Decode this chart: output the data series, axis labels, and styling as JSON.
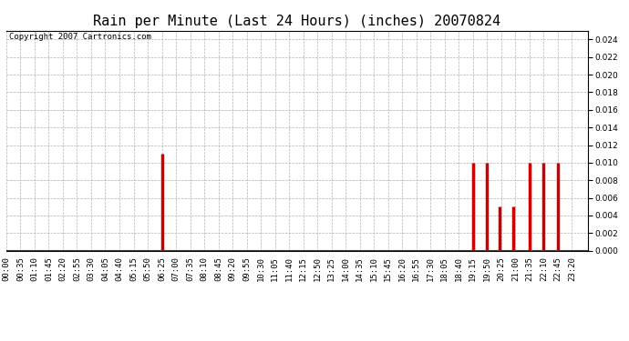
{
  "title": "Rain per Minute (Last 24 Hours) (inches) 20070824",
  "copyright_text": "Copyright 2007 Cartronics.com",
  "bar_color": "#cc0000",
  "background_color": "#ffffff",
  "plot_bg_color": "#ffffff",
  "ylim": [
    0,
    0.025
  ],
  "yticks": [
    0.0,
    0.002,
    0.004,
    0.006,
    0.008,
    0.01,
    0.012,
    0.014,
    0.016,
    0.018,
    0.02,
    0.022,
    0.024
  ],
  "grid_color": "#aaaaaa",
  "baseline_color": "#cc0000",
  "data": [
    {
      "time_minutes": 385,
      "value": 0.011
    },
    {
      "time_minutes": 1155,
      "value": 0.01
    },
    {
      "time_minutes": 1190,
      "value": 0.01
    },
    {
      "time_minutes": 1220,
      "value": 0.005
    },
    {
      "time_minutes": 1255,
      "value": 0.005
    },
    {
      "time_minutes": 1295,
      "value": 0.01
    },
    {
      "time_minutes": 1330,
      "value": 0.01
    },
    {
      "time_minutes": 1365,
      "value": 0.01
    }
  ],
  "x_tick_times": [
    0,
    35,
    70,
    105,
    140,
    175,
    210,
    245,
    280,
    315,
    350,
    385,
    420,
    455,
    490,
    525,
    560,
    595,
    630,
    665,
    700,
    735,
    770,
    805,
    840,
    875,
    910,
    945,
    980,
    1015,
    1050,
    1085,
    1120,
    1155,
    1190,
    1225,
    1260,
    1295,
    1330,
    1365,
    1400
  ],
  "x_tick_labels": [
    "00:00",
    "00:35",
    "01:10",
    "01:45",
    "02:20",
    "02:55",
    "03:30",
    "04:05",
    "04:40",
    "05:15",
    "05:50",
    "06:25",
    "07:00",
    "07:35",
    "08:10",
    "08:45",
    "09:20",
    "09:55",
    "10:30",
    "11:05",
    "11:40",
    "12:15",
    "12:50",
    "13:25",
    "14:00",
    "14:35",
    "15:10",
    "15:45",
    "16:20",
    "16:55",
    "17:30",
    "18:05",
    "18:40",
    "19:15",
    "19:50",
    "20:25",
    "21:00",
    "21:35",
    "22:10",
    "22:45",
    "23:20"
  ],
  "title_fontsize": 11,
  "tick_fontsize": 6.5,
  "copyright_fontsize": 6.5,
  "total_minutes": 1440
}
